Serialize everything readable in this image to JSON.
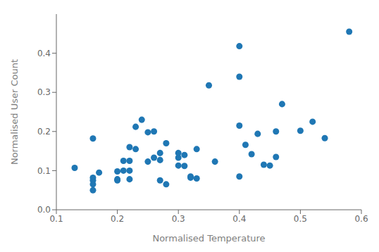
{
  "chart_data": {
    "type": "scatter",
    "x": [
      0.13,
      0.16,
      0.16,
      0.16,
      0.16,
      0.16,
      0.17,
      0.2,
      0.2,
      0.2,
      0.21,
      0.21,
      0.22,
      0.22,
      0.22,
      0.22,
      0.23,
      0.23,
      0.24,
      0.25,
      0.25,
      0.26,
      0.26,
      0.27,
      0.27,
      0.27,
      0.28,
      0.28,
      0.3,
      0.3,
      0.3,
      0.31,
      0.31,
      0.32,
      0.32,
      0.33,
      0.33,
      0.35,
      0.36,
      0.4,
      0.4,
      0.4,
      0.4,
      0.41,
      0.42,
      0.43,
      0.44,
      0.45,
      0.46,
      0.46,
      0.47,
      0.5,
      0.52,
      0.54,
      0.58
    ],
    "values": [
      0.107,
      0.182,
      0.082,
      0.075,
      0.065,
      0.05,
      0.095,
      0.098,
      0.075,
      0.078,
      0.125,
      0.1,
      0.16,
      0.125,
      0.1,
      0.078,
      0.212,
      0.155,
      0.23,
      0.198,
      0.123,
      0.2,
      0.133,
      0.075,
      0.145,
      0.127,
      0.17,
      0.065,
      0.113,
      0.133,
      0.145,
      0.14,
      0.112,
      0.082,
      0.085,
      0.155,
      0.08,
      0.318,
      0.123,
      0.418,
      0.34,
      0.215,
      0.085,
      0.166,
      0.142,
      0.194,
      0.115,
      0.113,
      0.2,
      0.135,
      0.27,
      0.202,
      0.225,
      0.183,
      0.455
    ],
    "color": "#1f77b4",
    "xlabel": "Normalised Temperature",
    "ylabel": "Normalised User Count",
    "xlim": [
      0.1,
      0.6
    ],
    "ylim": [
      0.0,
      0.5
    ],
    "xticks": [
      0.1,
      0.2,
      0.3,
      0.4,
      0.5,
      0.6
    ],
    "yticks": [
      {
        "value": 0.0,
        "label": "0.0"
      },
      0.1,
      0.2,
      0.3,
      0.4
    ]
  }
}
